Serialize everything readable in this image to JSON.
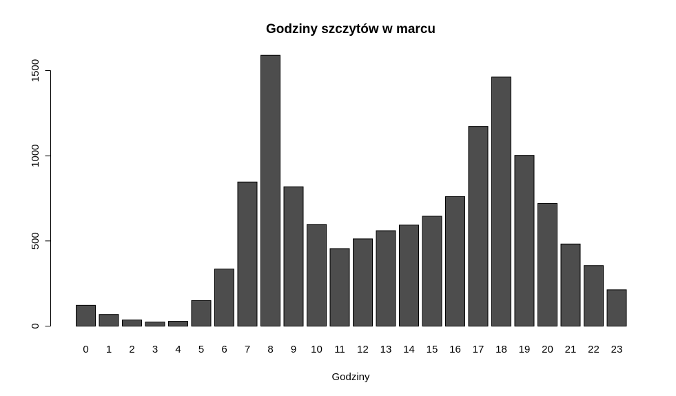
{
  "chart_data": {
    "type": "bar",
    "title": "Godziny szczytów w marcu",
    "xlabel": "Godziny",
    "ylabel": "",
    "categories": [
      "0",
      "1",
      "2",
      "3",
      "4",
      "5",
      "6",
      "7",
      "8",
      "9",
      "10",
      "11",
      "12",
      "13",
      "14",
      "15",
      "16",
      "17",
      "18",
      "19",
      "20",
      "21",
      "22",
      "23"
    ],
    "values": [
      122,
      68,
      36,
      24,
      28,
      150,
      335,
      846,
      1590,
      818,
      597,
      455,
      512,
      560,
      593,
      645,
      760,
      1172,
      1462,
      1002,
      720,
      482,
      355,
      213
    ],
    "yticks": [
      0,
      500,
      1000,
      1500
    ],
    "ytick_labels": [
      "0",
      "500",
      "1000",
      "1500"
    ],
    "ylim": [
      0,
      1590
    ],
    "grid": false,
    "bar_color": "#4d4d4d",
    "bar_border_color": "#000000"
  }
}
